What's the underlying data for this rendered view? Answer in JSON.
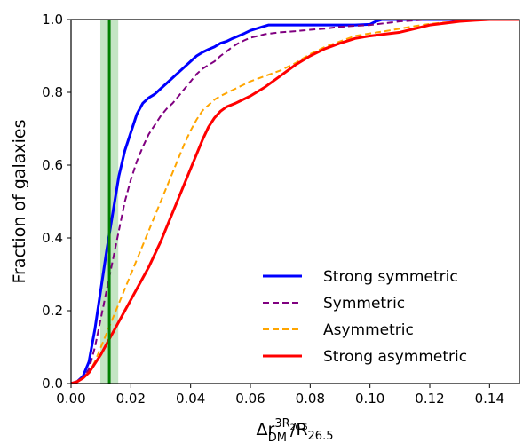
{
  "chart_data": {
    "type": "line",
    "xlabel": {
      "base": "Δr",
      "sup_main": "3R",
      "sup_sub": "26.5",
      "sub": "DM",
      "tail": "/R",
      "tail_sub": "26.5"
    },
    "ylabel": "Fraction of galaxies",
    "xlim": [
      0.0,
      0.15
    ],
    "ylim": [
      0.0,
      1.0
    ],
    "x_ticks": [
      "0.00",
      "0.02",
      "0.04",
      "0.06",
      "0.08",
      "0.10",
      "0.12",
      "0.14"
    ],
    "y_ticks": [
      "0.0",
      "0.2",
      "0.4",
      "0.6",
      "0.8",
      "1.0"
    ],
    "grid": false,
    "legend_position": "lower-right",
    "vline": {
      "x": 0.0128,
      "color": "#008000"
    },
    "vband": {
      "x0": 0.0098,
      "x1": 0.0158,
      "color": "#2ca02c"
    },
    "series": [
      {
        "name": "Strong symmetric",
        "color": "#0000ff",
        "dash": "solid",
        "x": [
          0.0,
          0.002,
          0.004,
          0.006,
          0.008,
          0.01,
          0.012,
          0.014,
          0.016,
          0.018,
          0.02,
          0.022,
          0.024,
          0.026,
          0.028,
          0.03,
          0.032,
          0.034,
          0.036,
          0.038,
          0.04,
          0.042,
          0.044,
          0.046,
          0.048,
          0.05,
          0.052,
          0.054,
          0.056,
          0.058,
          0.06,
          0.062,
          0.064,
          0.066,
          0.068,
          0.07,
          0.075,
          0.08,
          0.085,
          0.09,
          0.095,
          0.1,
          0.102,
          0.104,
          0.11,
          0.12,
          0.13,
          0.14,
          0.15
        ],
        "y": [
          0.0,
          0.005,
          0.02,
          0.06,
          0.15,
          0.26,
          0.37,
          0.47,
          0.57,
          0.64,
          0.69,
          0.74,
          0.77,
          0.785,
          0.795,
          0.81,
          0.825,
          0.84,
          0.855,
          0.87,
          0.885,
          0.9,
          0.91,
          0.918,
          0.925,
          0.935,
          0.94,
          0.948,
          0.955,
          0.962,
          0.97,
          0.975,
          0.98,
          0.985,
          0.985,
          0.985,
          0.985,
          0.985,
          0.985,
          0.985,
          0.985,
          0.987,
          0.995,
          1.0,
          1.0,
          1.0,
          1.0,
          1.0,
          1.0
        ]
      },
      {
        "name": "Symmetric",
        "color": "#800080",
        "dash": "dashed",
        "x": [
          0.0,
          0.002,
          0.004,
          0.006,
          0.008,
          0.01,
          0.012,
          0.014,
          0.016,
          0.018,
          0.02,
          0.022,
          0.024,
          0.026,
          0.028,
          0.03,
          0.032,
          0.034,
          0.036,
          0.038,
          0.04,
          0.042,
          0.044,
          0.046,
          0.048,
          0.05,
          0.052,
          0.054,
          0.056,
          0.058,
          0.06,
          0.065,
          0.07,
          0.075,
          0.08,
          0.085,
          0.09,
          0.095,
          0.1,
          0.105,
          0.11,
          0.12,
          0.13,
          0.14,
          0.15
        ],
        "y": [
          0.0,
          0.005,
          0.015,
          0.04,
          0.1,
          0.18,
          0.26,
          0.34,
          0.42,
          0.5,
          0.56,
          0.61,
          0.65,
          0.685,
          0.71,
          0.735,
          0.755,
          0.77,
          0.79,
          0.81,
          0.83,
          0.85,
          0.865,
          0.875,
          0.885,
          0.9,
          0.912,
          0.925,
          0.935,
          0.943,
          0.95,
          0.96,
          0.965,
          0.968,
          0.972,
          0.975,
          0.98,
          0.983,
          0.985,
          0.99,
          0.995,
          1.0,
          1.0,
          1.0,
          1.0
        ]
      },
      {
        "name": "Asymmetric",
        "color": "#ffa500",
        "dash": "dashed",
        "x": [
          0.0,
          0.002,
          0.004,
          0.006,
          0.008,
          0.01,
          0.012,
          0.014,
          0.016,
          0.018,
          0.02,
          0.022,
          0.024,
          0.026,
          0.028,
          0.03,
          0.032,
          0.034,
          0.036,
          0.038,
          0.04,
          0.042,
          0.044,
          0.046,
          0.048,
          0.05,
          0.055,
          0.06,
          0.065,
          0.07,
          0.075,
          0.08,
          0.085,
          0.09,
          0.095,
          0.1,
          0.105,
          0.11,
          0.115,
          0.12,
          0.125,
          0.13,
          0.135,
          0.14,
          0.15
        ],
        "y": [
          0.0,
          0.005,
          0.015,
          0.03,
          0.06,
          0.1,
          0.14,
          0.18,
          0.22,
          0.26,
          0.3,
          0.34,
          0.38,
          0.42,
          0.46,
          0.5,
          0.54,
          0.58,
          0.62,
          0.66,
          0.695,
          0.725,
          0.75,
          0.765,
          0.78,
          0.79,
          0.81,
          0.83,
          0.845,
          0.86,
          0.88,
          0.905,
          0.925,
          0.94,
          0.955,
          0.962,
          0.968,
          0.975,
          0.982,
          0.988,
          0.992,
          0.995,
          0.998,
          1.0,
          1.0
        ]
      },
      {
        "name": "Strong asymmetric",
        "color": "#ff0000",
        "dash": "solid",
        "x": [
          0.0,
          0.002,
          0.004,
          0.006,
          0.008,
          0.01,
          0.012,
          0.014,
          0.016,
          0.018,
          0.02,
          0.022,
          0.024,
          0.026,
          0.028,
          0.03,
          0.032,
          0.034,
          0.036,
          0.038,
          0.04,
          0.042,
          0.044,
          0.046,
          0.048,
          0.05,
          0.052,
          0.055,
          0.06,
          0.065,
          0.07,
          0.075,
          0.08,
          0.085,
          0.09,
          0.095,
          0.1,
          0.105,
          0.11,
          0.115,
          0.12,
          0.125,
          0.13,
          0.135,
          0.14,
          0.15
        ],
        "y": [
          0.0,
          0.005,
          0.015,
          0.03,
          0.055,
          0.08,
          0.11,
          0.14,
          0.17,
          0.2,
          0.23,
          0.26,
          0.29,
          0.32,
          0.355,
          0.39,
          0.43,
          0.47,
          0.51,
          0.55,
          0.59,
          0.63,
          0.67,
          0.705,
          0.73,
          0.748,
          0.76,
          0.77,
          0.79,
          0.815,
          0.845,
          0.875,
          0.9,
          0.92,
          0.935,
          0.948,
          0.955,
          0.96,
          0.965,
          0.975,
          0.985,
          0.99,
          0.995,
          0.998,
          1.0,
          1.0
        ]
      }
    ]
  }
}
